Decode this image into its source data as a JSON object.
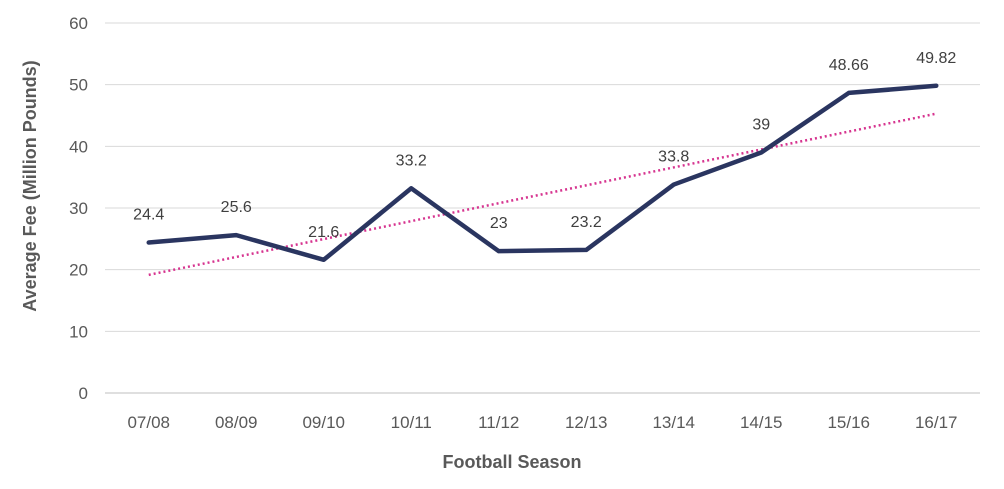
{
  "chart_data": {
    "type": "line",
    "title": "",
    "xlabel": "Football Season",
    "ylabel": "Average Fee (Million Pounds)",
    "categories": [
      "07/08",
      "08/09",
      "09/10",
      "10/11",
      "11/12",
      "12/13",
      "13/14",
      "14/15",
      "15/16",
      "16/17"
    ],
    "series": [
      {
        "values": [
          24.4,
          25.6,
          21.6,
          33.2,
          23,
          23.2,
          33.8,
          39,
          48.66,
          49.82
        ],
        "data_labels": [
          "24.4",
          "25.6",
          "21.6",
          "33.2",
          "23",
          "23.2",
          "33.8",
          "39",
          "48.66",
          "49.82"
        ],
        "color": "#2a3560"
      }
    ],
    "trendline": {
      "type": "linear",
      "style": "dotted",
      "color": "#d6338f"
    },
    "ylim": [
      0,
      60
    ],
    "yticks": [
      "0",
      "10",
      "20",
      "30",
      "40",
      "50",
      "60"
    ],
    "grid": true,
    "legend": "none"
  }
}
